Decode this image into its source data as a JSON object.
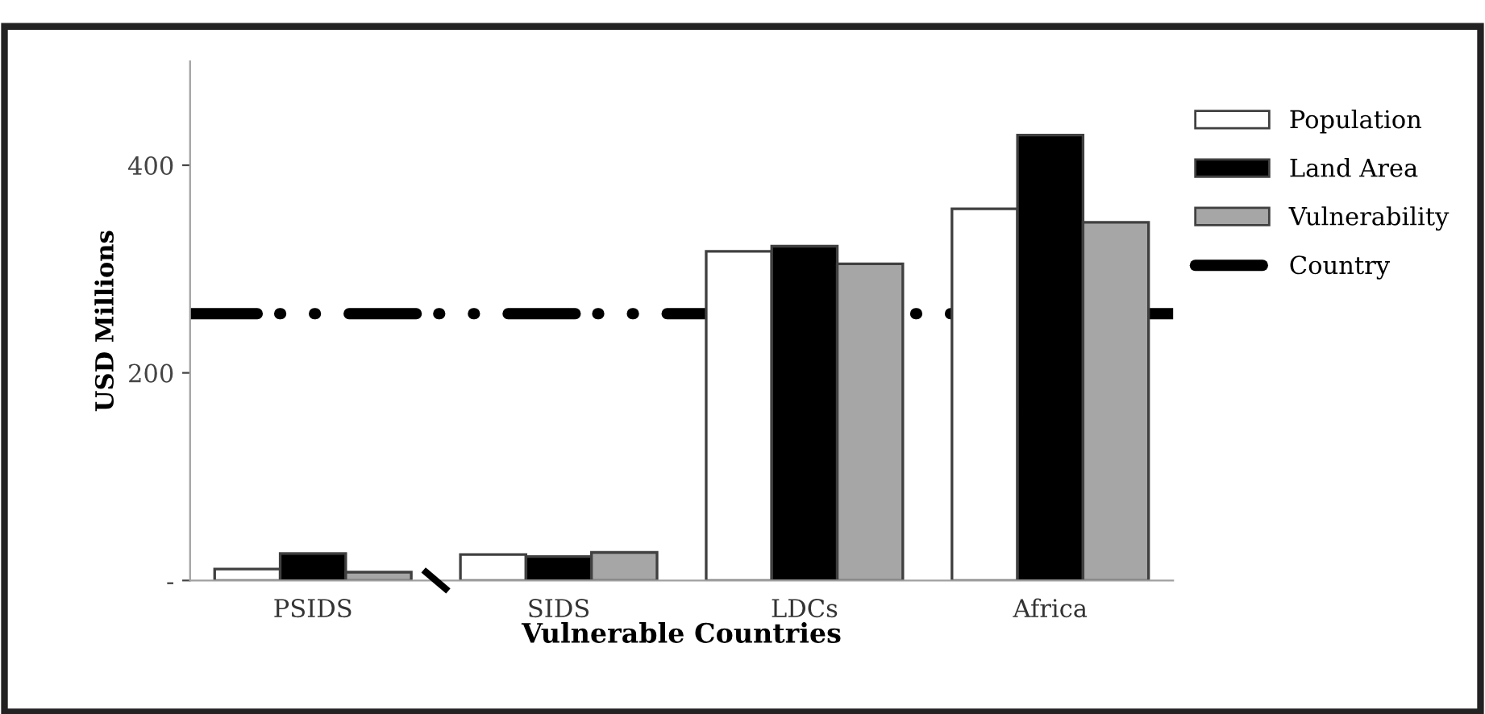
{
  "chart_data": {
    "type": "bar",
    "xlabel": "Vulnerable Countries",
    "ylabel": "USD Millions",
    "categories": [
      "PSIDS",
      "SIDS",
      "LDCs",
      "Africa"
    ],
    "series": [
      {
        "name": "Population",
        "color": "#ffffff",
        "values": [
          11,
          25,
          317,
          358
        ]
      },
      {
        "name": "Land Area",
        "color": "#000000",
        "values": [
          26,
          23,
          322,
          429
        ]
      },
      {
        "name": "Vulnerability",
        "color": "#a6a6a6",
        "values": [
          8,
          27,
          305,
          345
        ]
      }
    ],
    "ref_lines": [
      {
        "axis": "y",
        "value": 257,
        "label": "Country",
        "color": "#000000",
        "line_style": "dashed"
      }
    ],
    "ylim": [
      0,
      500
    ],
    "yticks": [
      {
        "value": 0,
        "label": "-"
      },
      200,
      400
    ],
    "grid": false,
    "legend": "top right"
  }
}
